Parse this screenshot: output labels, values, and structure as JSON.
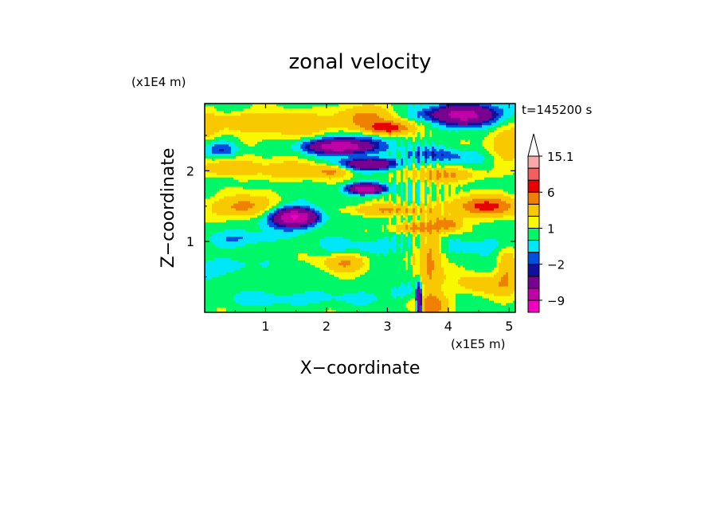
{
  "chart_data": {
    "type": "heatmap",
    "title": "zonal velocity",
    "xlabel": "X−coordinate",
    "ylabel": "Z−coordinate",
    "x_multiplier": "(x1E5 m)",
    "y_multiplier": "(x1E4 m)",
    "time_label": "t=145200 s",
    "xlim": [
      0,
      5.1
    ],
    "ylim": [
      0,
      2.95
    ],
    "x_ticks": [
      {
        "value": 1,
        "label": "1"
      },
      {
        "value": 2,
        "label": "2"
      },
      {
        "value": 3,
        "label": "3"
      },
      {
        "value": 4,
        "label": "4"
      },
      {
        "value": 5,
        "label": "5"
      }
    ],
    "y_ticks": [
      {
        "value": 1,
        "label": "1"
      },
      {
        "value": 2,
        "label": "2"
      }
    ],
    "colorbar": {
      "levels": [
        -12,
        -9,
        -6,
        -3,
        -2,
        -1,
        0,
        1,
        2,
        4,
        6,
        9,
        12,
        15.1
      ],
      "colors": [
        "#f000c0",
        "#c000a8",
        "#7a0090",
        "#1010a0",
        "#0050e0",
        "#00e8f8",
        "#00f868",
        "#f8f800",
        "#f8c800",
        "#f08000",
        "#e80000",
        "#f06060",
        "#f8a8a8"
      ],
      "extend_top_color": "#ffffff",
      "labels": [
        {
          "value": 15.1,
          "label": "15.1"
        },
        {
          "value": 6,
          "label": "6"
        },
        {
          "value": 1,
          "label": "1"
        },
        {
          "value": -2,
          "label": "−2"
        },
        {
          "value": -9,
          "label": "−9"
        }
      ]
    },
    "field": {
      "background": 0.6,
      "structures": [
        {
          "x": 0.05,
          "z": 2.65,
          "rx": 0.2,
          "rz": 0.2,
          "v": 2.5
        },
        {
          "x": 0.3,
          "z": 2.3,
          "rx": 0.25,
          "rz": 0.12,
          "v": -2.5
        },
        {
          "x": 0.35,
          "z": 1.9,
          "rx": 0.2,
          "rz": 0.08,
          "v": -1.5
        },
        {
          "x": 0.55,
          "z": 2.7,
          "rx": 0.35,
          "rz": 0.12,
          "v": 3.0
        },
        {
          "x": 0.45,
          "z": 2.05,
          "rx": 0.55,
          "rz": 0.14,
          "v": 3.0
        },
        {
          "x": 0.65,
          "z": 1.5,
          "rx": 0.45,
          "rz": 0.16,
          "v": 5.0
        },
        {
          "x": 0.6,
          "z": 1.05,
          "rx": 0.45,
          "rz": 0.1,
          "v": -1.5
        },
        {
          "x": 0.35,
          "z": 0.65,
          "rx": 0.45,
          "rz": 0.12,
          "v": -1.5
        },
        {
          "x": 1.4,
          "z": 2.65,
          "rx": 0.6,
          "rz": 0.18,
          "v": 3.0
        },
        {
          "x": 1.1,
          "z": 1.35,
          "rx": 0.65,
          "rz": 0.28,
          "v": -1.2
        },
        {
          "x": 1.5,
          "z": 1.35,
          "rx": 0.35,
          "rz": 0.12,
          "v": -9.0
        },
        {
          "x": 1.5,
          "z": 2.0,
          "rx": 0.55,
          "rz": 0.12,
          "v": 3.0
        },
        {
          "x": 1.4,
          "z": 0.2,
          "rx": 1.2,
          "rz": 0.1,
          "v": -1.2
        },
        {
          "x": 2.3,
          "z": 0.7,
          "rx": 0.35,
          "rz": 0.12,
          "v": 3.5
        },
        {
          "x": 2.25,
          "z": 2.35,
          "rx": 0.55,
          "rz": 0.1,
          "v": -9.0
        },
        {
          "x": 2.7,
          "z": 2.1,
          "rx": 0.5,
          "rz": 0.08,
          "v": -6.0
        },
        {
          "x": 2.65,
          "z": 1.75,
          "rx": 0.3,
          "rz": 0.07,
          "v": -9.0
        },
        {
          "x": 2.1,
          "z": 2.0,
          "rx": 0.25,
          "rz": 0.08,
          "v": 3.0
        },
        {
          "x": 2.6,
          "z": 2.75,
          "rx": 0.5,
          "rz": 0.16,
          "v": 4.0
        },
        {
          "x": 3.0,
          "z": 2.6,
          "rx": 0.35,
          "rz": 0.1,
          "v": 6.5
        },
        {
          "x": 2.55,
          "z": 2.5,
          "rx": 0.5,
          "rz": 0.08,
          "v": -1.5
        },
        {
          "x": 3.0,
          "z": 1.45,
          "rx": 0.65,
          "rz": 0.08,
          "v": 3.5
        },
        {
          "x": 3.4,
          "z": 1.2,
          "rx": 0.35,
          "rz": 0.07,
          "v": 4.0
        },
        {
          "x": 2.8,
          "z": 0.95,
          "rx": 0.9,
          "rz": 0.12,
          "v": -1.2
        },
        {
          "x": 3.7,
          "z": 0.7,
          "rx": 0.2,
          "rz": 0.6,
          "v": 4.0
        },
        {
          "x": 3.52,
          "z": 0.12,
          "rx": 0.05,
          "rz": 0.25,
          "v": -9.0
        },
        {
          "x": 3.6,
          "z": 2.25,
          "rx": 0.5,
          "rz": 0.1,
          "v": -1.5
        },
        {
          "x": 3.9,
          "z": 1.95,
          "rx": 0.6,
          "rz": 0.1,
          "v": 3.5
        },
        {
          "x": 3.55,
          "z": 2.8,
          "rx": 0.4,
          "rz": 0.1,
          "v": -1.5
        },
        {
          "x": 4.3,
          "z": 2.8,
          "rx": 0.5,
          "rz": 0.15,
          "v": -8.0
        },
        {
          "x": 4.2,
          "z": 2.2,
          "rx": 0.55,
          "rz": 0.1,
          "v": -1.5
        },
        {
          "x": 4.6,
          "z": 1.5,
          "rx": 0.55,
          "rz": 0.14,
          "v": 6.0
        },
        {
          "x": 4.0,
          "z": 1.25,
          "rx": 0.2,
          "rz": 0.1,
          "v": 4.5
        },
        {
          "x": 4.5,
          "z": 0.95,
          "rx": 0.55,
          "rz": 0.12,
          "v": -1.3
        },
        {
          "x": 4.6,
          "z": 0.4,
          "rx": 0.5,
          "rz": 0.15,
          "v": 2.5
        },
        {
          "x": 3.7,
          "z": 0.1,
          "rx": 0.3,
          "rz": 0.15,
          "v": 3.5
        },
        {
          "x": 4.95,
          "z": 0.6,
          "rx": 0.15,
          "rz": 0.3,
          "v": 3.0
        },
        {
          "x": 3.2,
          "z": 0.3,
          "rx": 0.35,
          "rz": 0.15,
          "v": -1.2
        },
        {
          "x": 4.95,
          "z": 2.4,
          "rx": 0.3,
          "rz": 0.25,
          "v": 3.0
        }
      ]
    }
  }
}
